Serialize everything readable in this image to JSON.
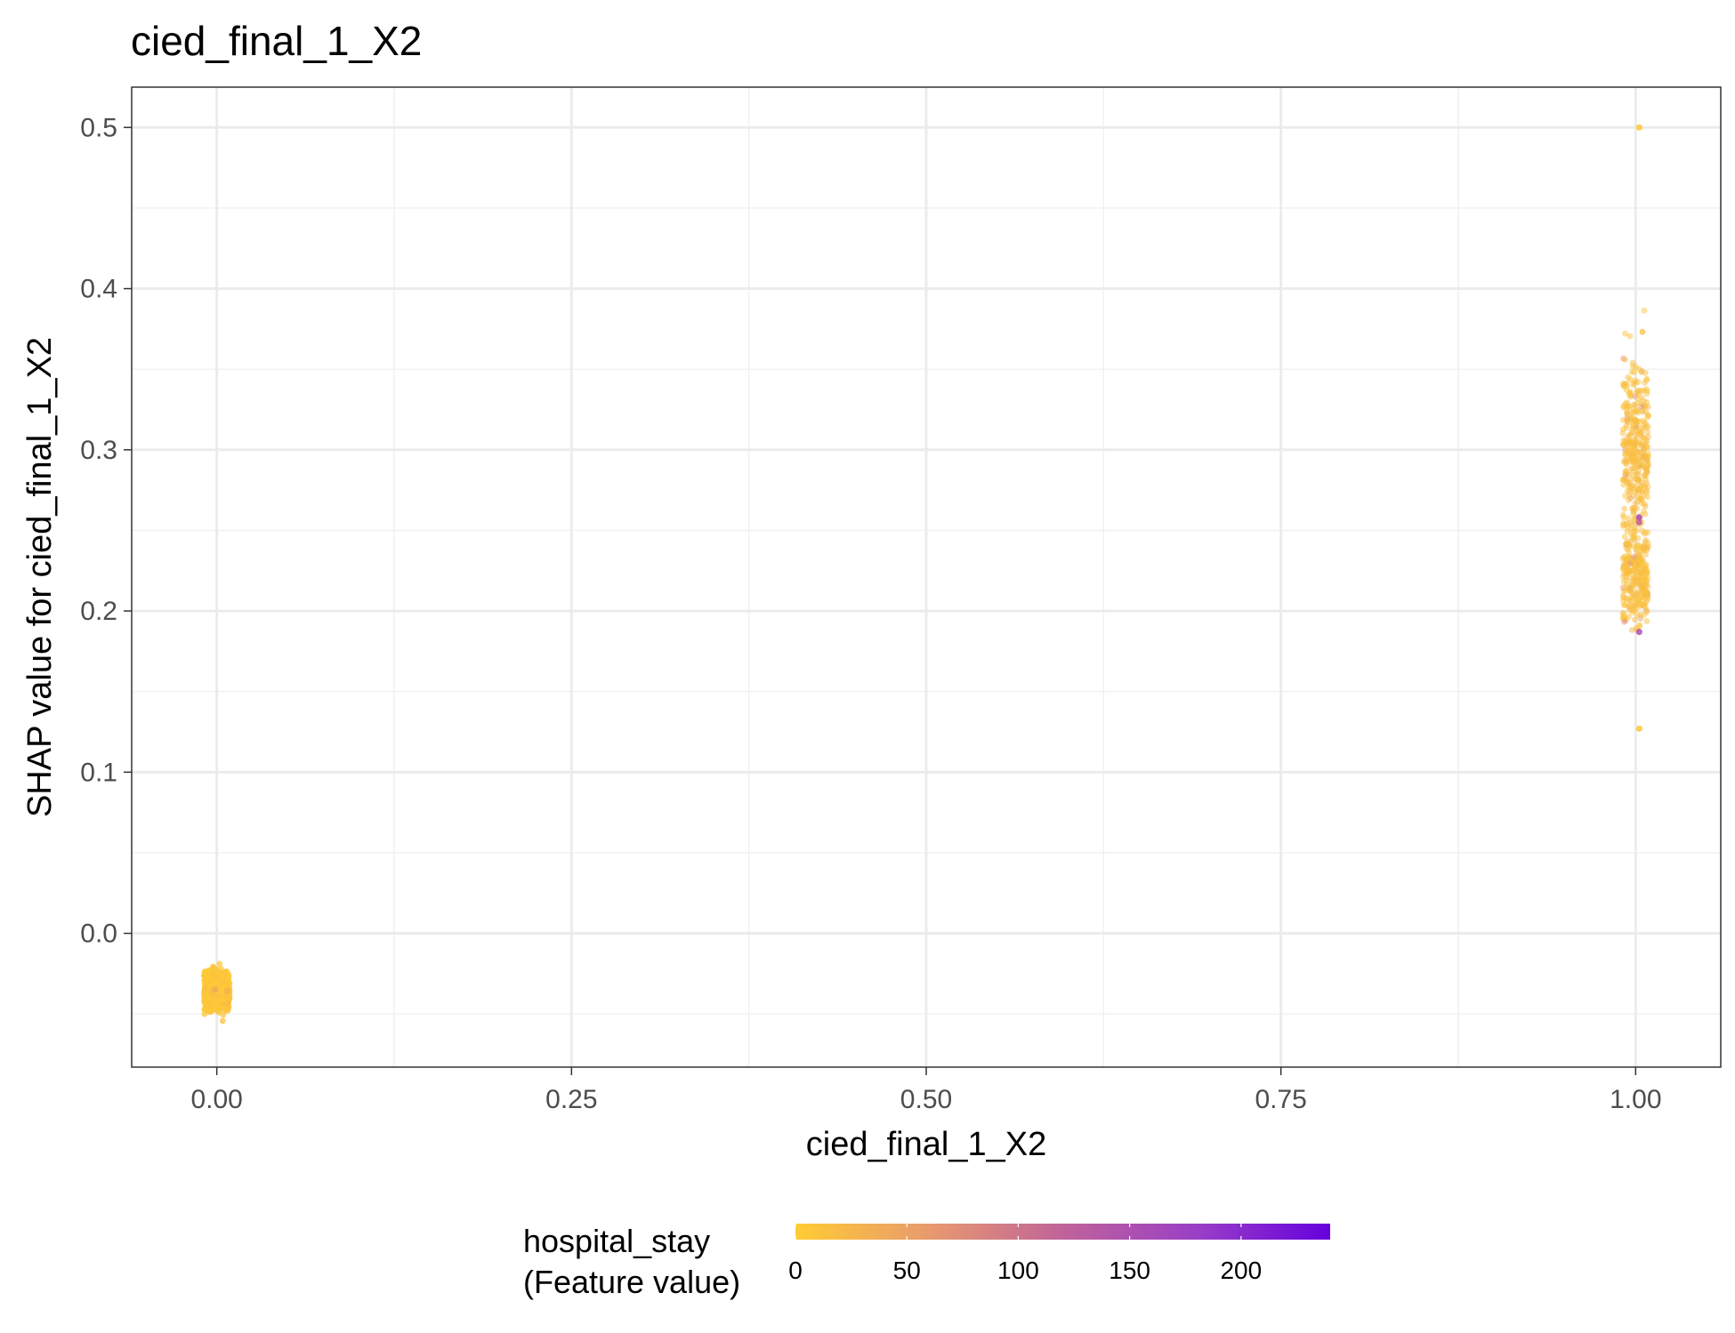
{
  "chart_data": {
    "type": "scatter",
    "title": "cied_final_1_X2",
    "xlabel": "cied_final_1_X2",
    "ylabel": "SHAP value for cied_final_1_X2",
    "xlim": [
      -0.06,
      1.06
    ],
    "ylim": [
      -0.083,
      0.525
    ],
    "x_ticks": [
      0.0,
      0.25,
      0.5,
      0.75,
      1.0
    ],
    "x_tick_labels": [
      "0.00",
      "0.25",
      "0.50",
      "0.75",
      "1.00"
    ],
    "y_ticks": [
      0.0,
      0.1,
      0.2,
      0.3,
      0.4,
      0.5
    ],
    "y_tick_labels": [
      "0.0",
      "0.1",
      "0.2",
      "0.3",
      "0.4",
      "0.5"
    ],
    "grid": true,
    "groups": [
      {
        "x": 0.0,
        "y_min": -0.057,
        "y_max": -0.013,
        "y_center": -0.036,
        "hospital_stay_typical": 8
      },
      {
        "x": 1.0,
        "y_min": 0.127,
        "y_max": 0.5,
        "y_center": 0.3,
        "hospital_stay_typical": 15
      }
    ],
    "highlighted_points": [
      {
        "x": 1.0,
        "y": 0.258,
        "hospital_stay": 160
      },
      {
        "x": 1.0,
        "y": 0.187,
        "hospital_stay": 150
      },
      {
        "x": 1.0,
        "y": 0.255,
        "hospital_stay": 120
      },
      {
        "x": 1.0,
        "y": 0.5,
        "hospital_stay": 5
      },
      {
        "x": 1.0,
        "y": 0.127,
        "hospital_stay": 5
      }
    ],
    "color_scale": {
      "title_line1": "hospital_stay",
      "title_line2": "(Feature value)",
      "min": 0,
      "max": 240,
      "ticks": [
        0,
        50,
        100,
        150,
        200
      ],
      "tick_labels": [
        "0",
        "50",
        "100",
        "150",
        "200"
      ],
      "colors": [
        "#FFCC33",
        "#E89A6E",
        "#C0639A",
        "#9A3FC6",
        "#6600DD"
      ],
      "placement": "bottom"
    }
  }
}
